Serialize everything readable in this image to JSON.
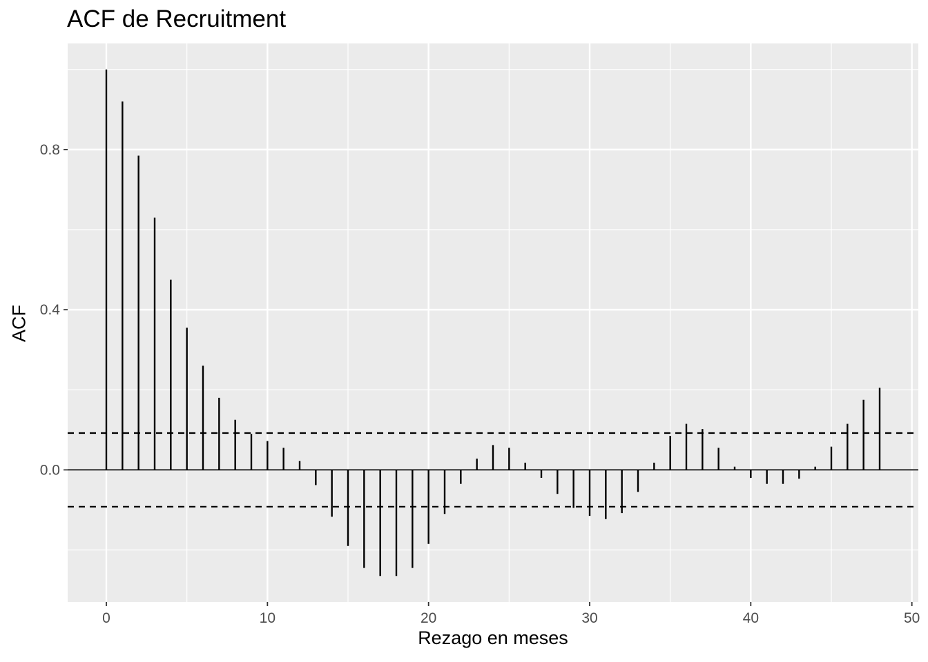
{
  "chart_data": {
    "type": "bar",
    "title": "ACF de Recruitment",
    "xlabel": "Rezago en meses",
    "ylabel": "ACF",
    "xlim": [
      -2.4,
      50.4
    ],
    "ylim": [
      -0.33,
      1.065
    ],
    "x_ticks": [
      0,
      10,
      20,
      30,
      40,
      50
    ],
    "x_tick_labels": [
      "0",
      "10",
      "20",
      "30",
      "40",
      "50"
    ],
    "y_ticks": [
      0.0,
      0.4,
      0.8
    ],
    "y_tick_labels": [
      "0.0",
      "0.4",
      "0.8"
    ],
    "grid": true,
    "confidence_band": 0.092,
    "lags": [
      0,
      1,
      2,
      3,
      4,
      5,
      6,
      7,
      8,
      9,
      10,
      11,
      12,
      13,
      14,
      15,
      16,
      17,
      18,
      19,
      20,
      21,
      22,
      23,
      24,
      25,
      26,
      27,
      28,
      29,
      30,
      31,
      32,
      33,
      34,
      35,
      36,
      37,
      38,
      39,
      40,
      41,
      42,
      43,
      44,
      45,
      46,
      47,
      48
    ],
    "values": [
      1.0,
      0.92,
      0.785,
      0.63,
      0.475,
      0.355,
      0.26,
      0.18,
      0.125,
      0.09,
      0.072,
      0.055,
      0.022,
      -0.038,
      -0.117,
      -0.19,
      -0.245,
      -0.265,
      -0.265,
      -0.245,
      -0.185,
      -0.11,
      -0.035,
      0.028,
      0.062,
      0.055,
      0.018,
      -0.02,
      -0.06,
      -0.095,
      -0.115,
      -0.123,
      -0.108,
      -0.055,
      0.018,
      0.085,
      0.115,
      0.102,
      0.055,
      0.008,
      -0.02,
      -0.035,
      -0.035,
      -0.022,
      0.008,
      0.058,
      0.115,
      0.175,
      0.205
    ]
  }
}
